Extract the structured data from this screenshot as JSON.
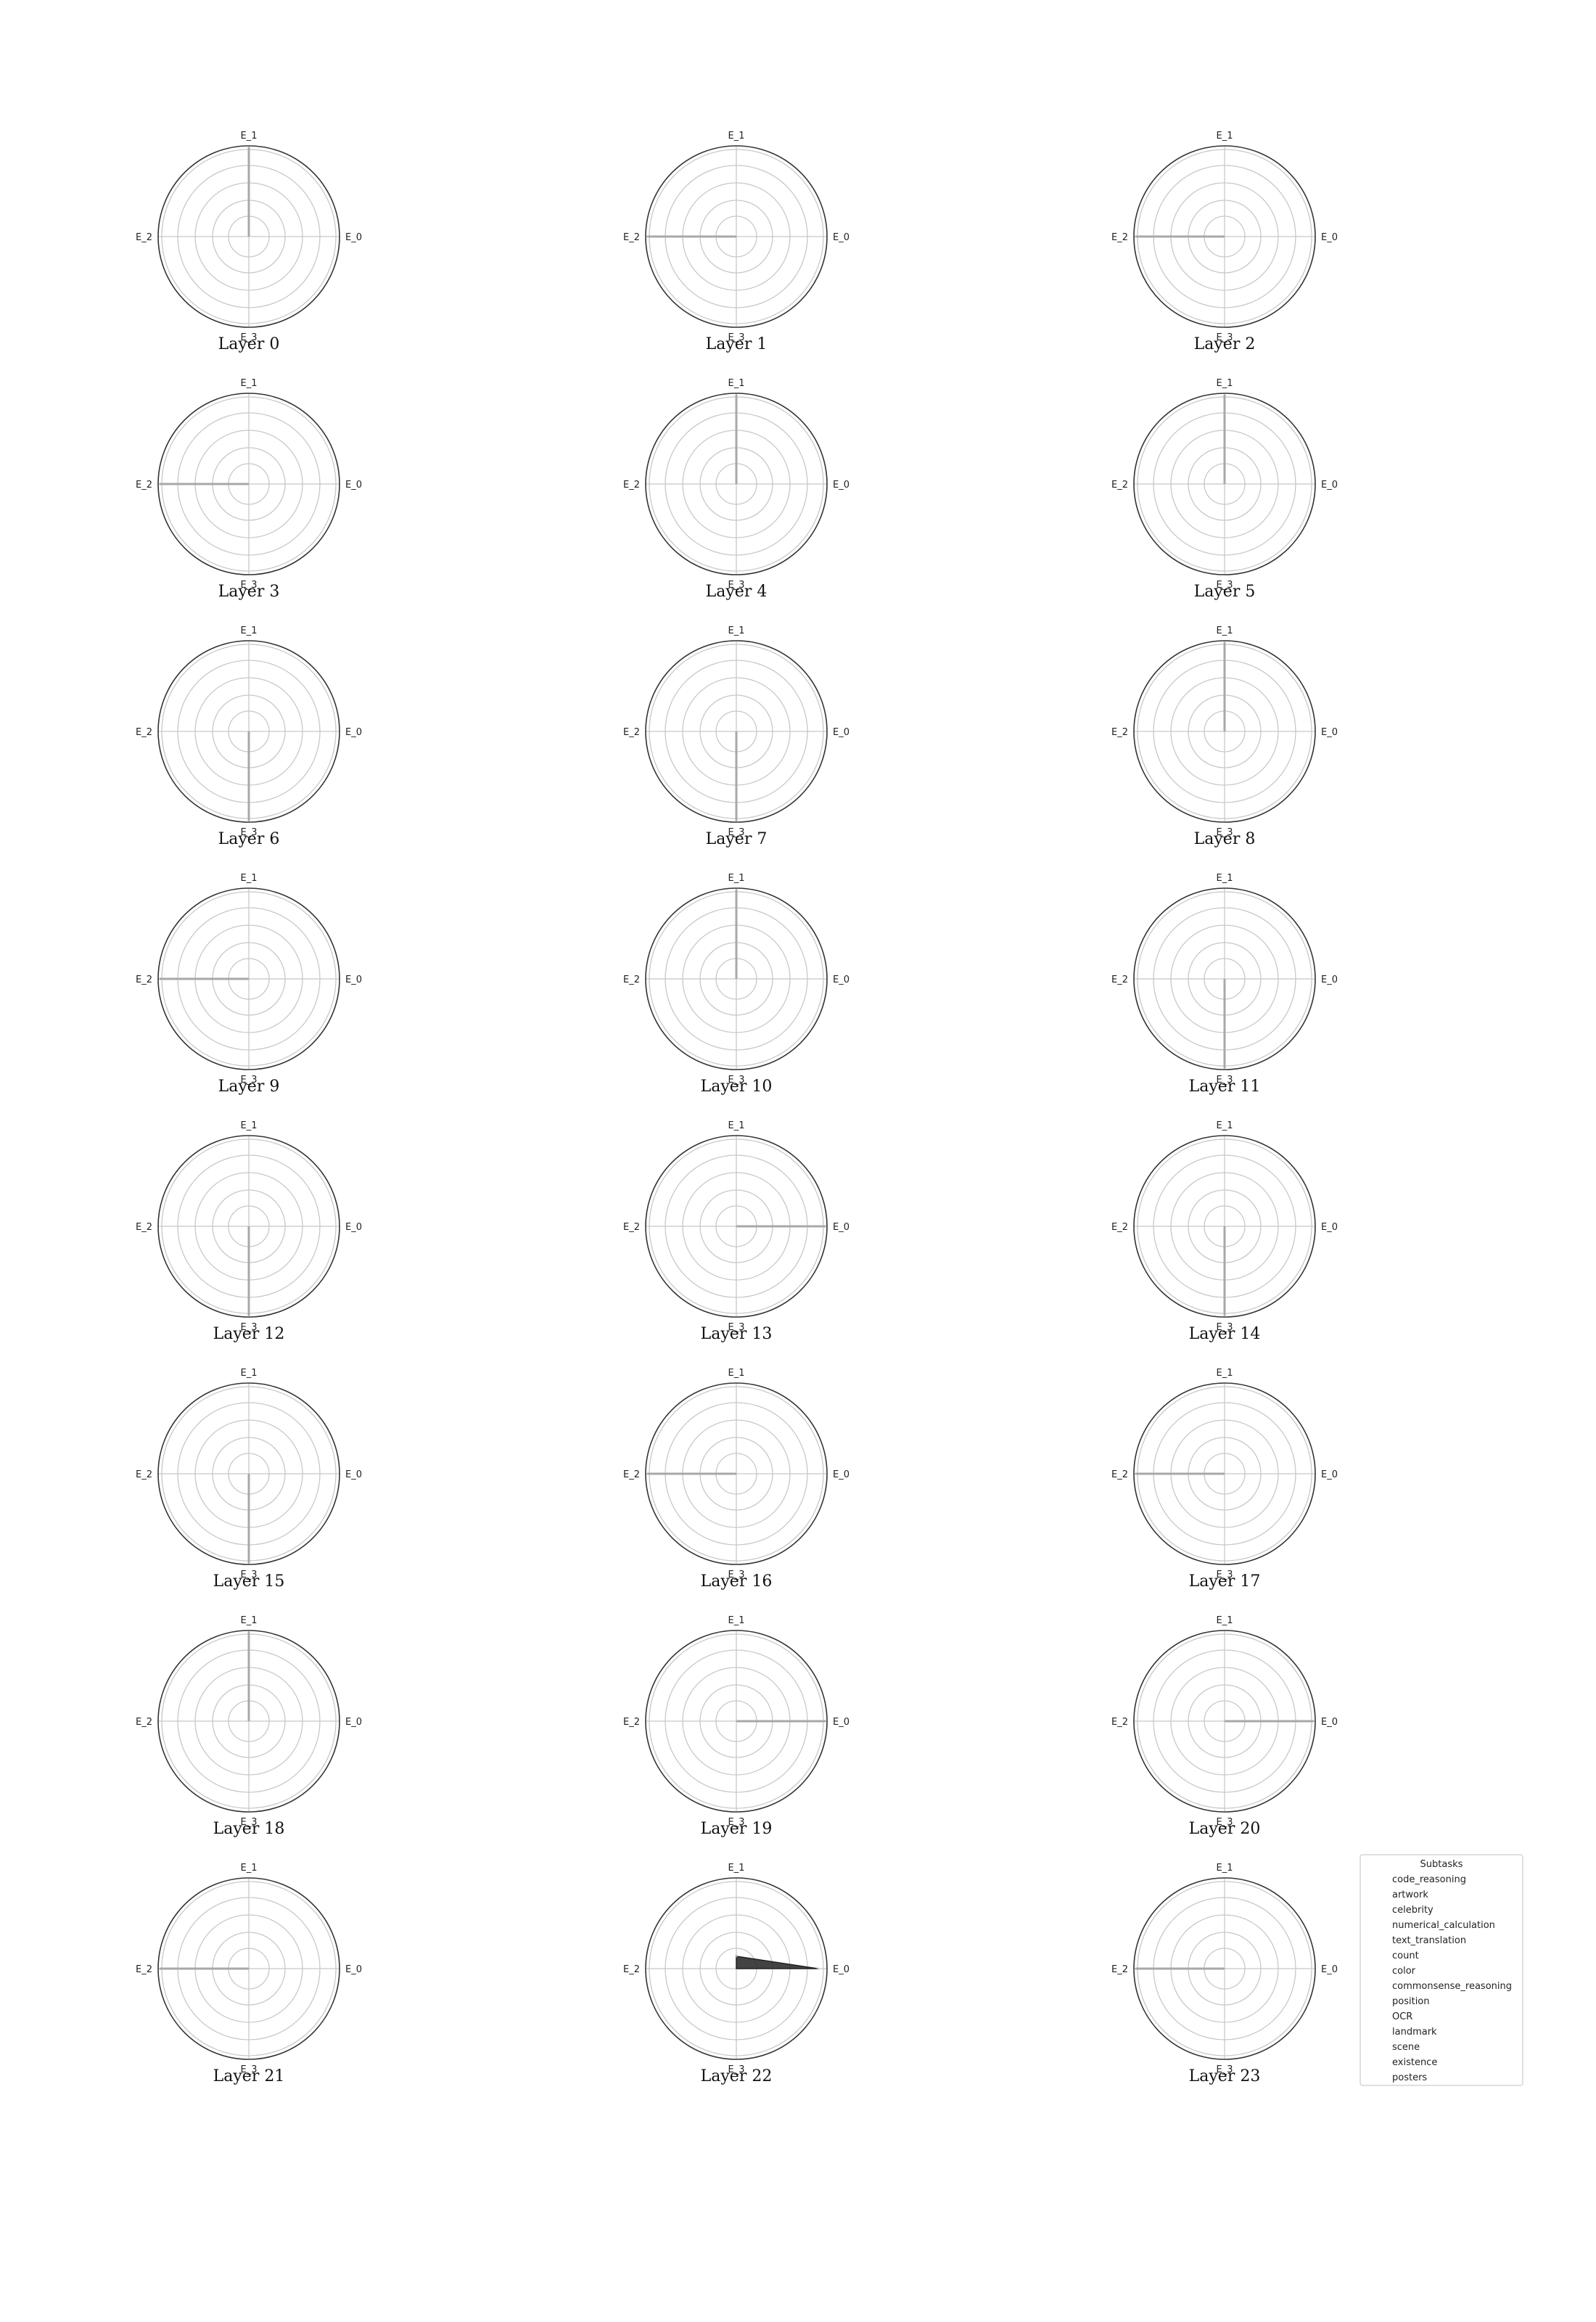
{
  "chart_data": {
    "type": "radar",
    "axes": [
      "E_0",
      "E_1",
      "E_2",
      "E_3"
    ],
    "radial_range": [
      0,
      1
    ],
    "grid": true,
    "legend": {
      "title": "Subtasks",
      "placement": "bottom-right",
      "entries": [
        "code_reasoning",
        "artwork",
        "celebrity",
        "numerical_calculation",
        "text_translation",
        "count",
        "color",
        "commonsense_reasoning",
        "position",
        "OCR",
        "landmark",
        "scene",
        "existence",
        "posters"
      ]
    },
    "panels": [
      {
        "title": "Layer 0",
        "values": [
          0,
          1,
          0,
          0
        ]
      },
      {
        "title": "Layer 1",
        "values": [
          0,
          0,
          1,
          0
        ]
      },
      {
        "title": "Layer 2",
        "values": [
          0,
          0,
          1,
          0
        ]
      },
      {
        "title": "Layer 3",
        "values": [
          0,
          0,
          1,
          0
        ]
      },
      {
        "title": "Layer 4",
        "values": [
          0,
          1,
          0,
          0
        ]
      },
      {
        "title": "Layer 5",
        "values": [
          0,
          1,
          0,
          0
        ]
      },
      {
        "title": "Layer 6",
        "values": [
          0,
          0,
          0,
          1
        ]
      },
      {
        "title": "Layer 7",
        "values": [
          0,
          0,
          0,
          1
        ]
      },
      {
        "title": "Layer 8",
        "values": [
          0,
          1,
          0,
          0
        ]
      },
      {
        "title": "Layer 9",
        "values": [
          0,
          0,
          1,
          0
        ]
      },
      {
        "title": "Layer 10",
        "values": [
          0,
          1,
          0,
          0
        ]
      },
      {
        "title": "Layer 11",
        "values": [
          0,
          0,
          0,
          1
        ]
      },
      {
        "title": "Layer 12",
        "values": [
          0,
          0,
          0,
          1
        ]
      },
      {
        "title": "Layer 13",
        "values": [
          1,
          0,
          0,
          0
        ]
      },
      {
        "title": "Layer 14",
        "values": [
          0,
          0,
          0,
          1
        ]
      },
      {
        "title": "Layer 15",
        "values": [
          0,
          0,
          0,
          1
        ]
      },
      {
        "title": "Layer 16",
        "values": [
          0,
          0,
          1,
          0
        ]
      },
      {
        "title": "Layer 17",
        "values": [
          0,
          0,
          1,
          0
        ]
      },
      {
        "title": "Layer 18",
        "values": [
          0,
          1,
          0,
          0
        ]
      },
      {
        "title": "Layer 19",
        "values": [
          1,
          0,
          0,
          0
        ]
      },
      {
        "title": "Layer 20",
        "values": [
          1,
          0,
          0,
          0
        ]
      },
      {
        "title": "Layer 21",
        "values": [
          0,
          0,
          1,
          0
        ]
      },
      {
        "title": "Layer 22",
        "values": [
          0.92,
          0.14,
          0,
          0
        ]
      },
      {
        "title": "Layer 23",
        "values": [
          0,
          0,
          1,
          0
        ]
      }
    ],
    "colors": {
      "background": "#ffffff",
      "grid": "#c8c8c8",
      "frame": "#333333",
      "data_line": "#a8a8a8",
      "fill_dark": "#222222",
      "legend_border": "#cccccc"
    }
  }
}
